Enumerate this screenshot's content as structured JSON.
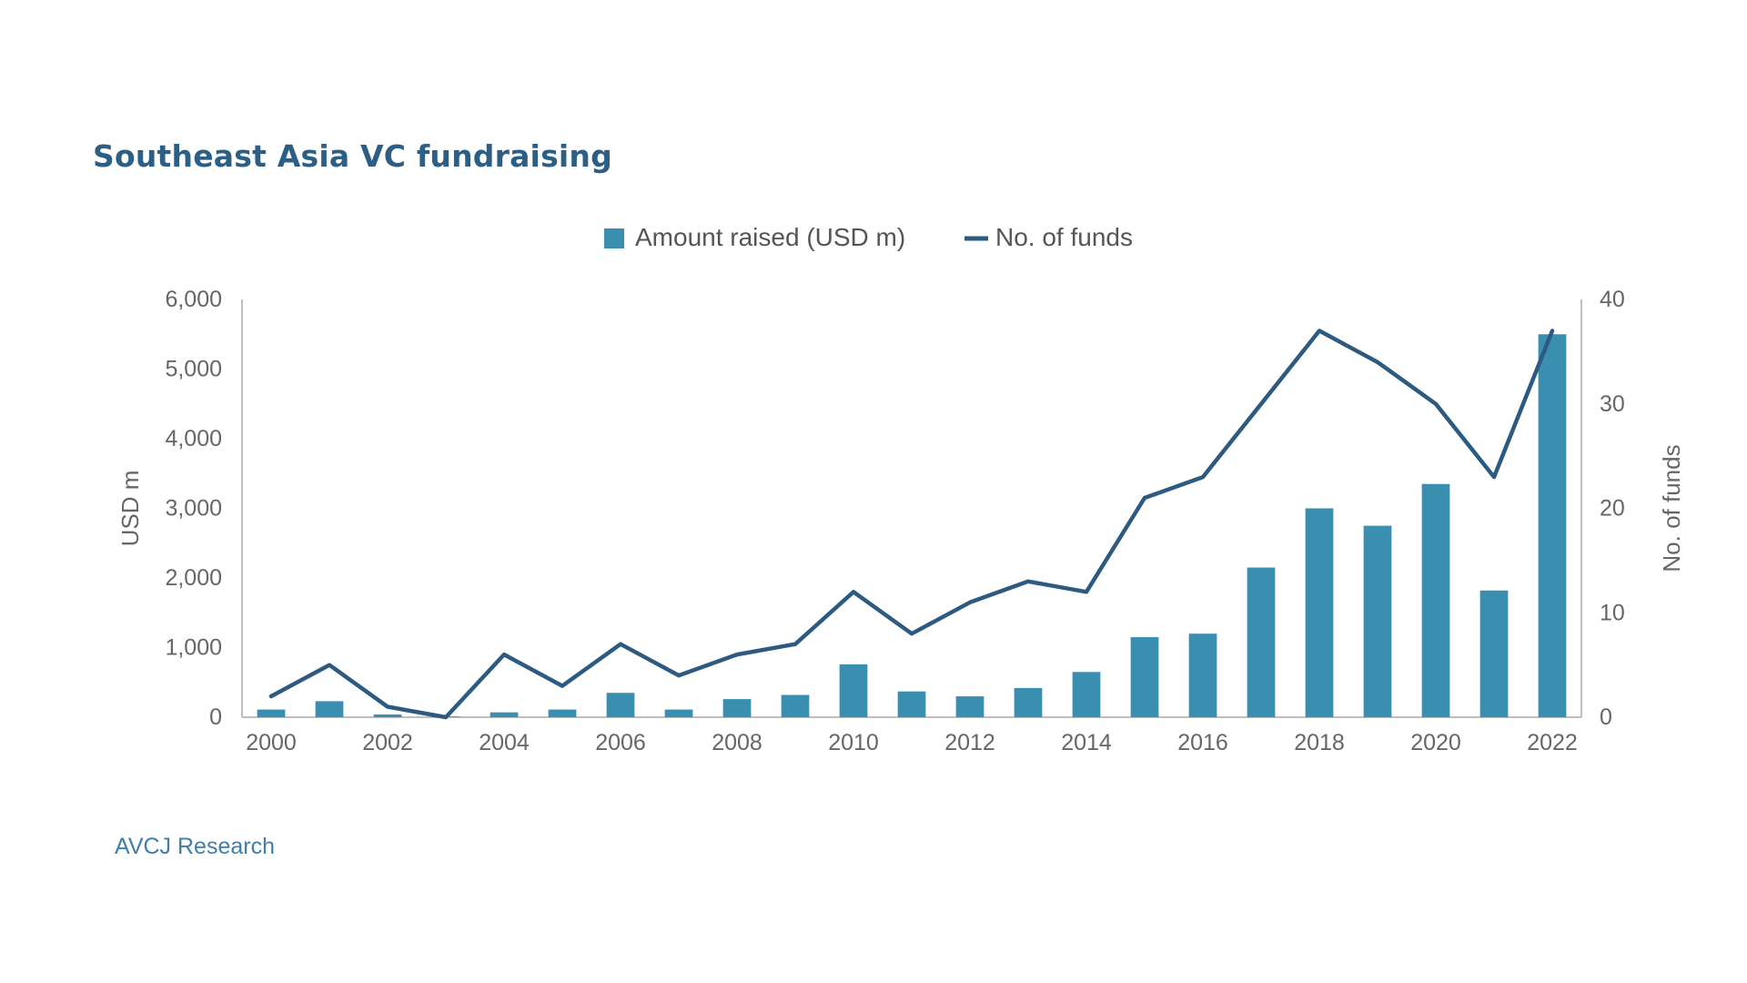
{
  "chart_data": {
    "type": "bar",
    "title": "Southeast Asia VC fundraising",
    "source": "AVCJ Research",
    "categories": [
      "2000",
      "2001",
      "2002",
      "2003",
      "2004",
      "2005",
      "2006",
      "2007",
      "2008",
      "2009",
      "2010",
      "2011",
      "2012",
      "2013",
      "2014",
      "2015",
      "2016",
      "2017",
      "2018",
      "2019",
      "2020",
      "2021",
      "2022"
    ],
    "x_tick_labels": [
      "2000",
      "2002",
      "2004",
      "2006",
      "2008",
      "2010",
      "2012",
      "2014",
      "2016",
      "2018",
      "2020",
      "2022"
    ],
    "series": [
      {
        "name": "Amount raised (USD m)",
        "type": "bar",
        "axis": "left",
        "color": "#3a8fb0",
        "values": [
          110,
          230,
          40,
          10,
          70,
          110,
          350,
          110,
          260,
          320,
          760,
          370,
          300,
          420,
          650,
          1150,
          1200,
          2150,
          3000,
          2750,
          3350,
          1820,
          5500
        ]
      },
      {
        "name": "No. of funds",
        "type": "line",
        "axis": "right",
        "color": "#2c5a80",
        "values": [
          2,
          5,
          1,
          0,
          6,
          3,
          7,
          4,
          6,
          7,
          12,
          8,
          11,
          13,
          12,
          21,
          23,
          30,
          37,
          34,
          30,
          23,
          37
        ]
      }
    ],
    "ylabel": "USD m",
    "ylim": [
      0,
      6000
    ],
    "y_ticks": [
      0,
      1000,
      2000,
      3000,
      4000,
      5000,
      6000
    ],
    "y_tick_labels": [
      "0",
      "1,000",
      "2,000",
      "3,000",
      "4,000",
      "5,000",
      "6,000"
    ],
    "y2label": "No. of funds",
    "y2lim": [
      0,
      40
    ],
    "y2_ticks": [
      0,
      10,
      20,
      30,
      40
    ],
    "y2_tick_labels": [
      "0",
      "10",
      "20",
      "30",
      "40"
    ],
    "grid": false,
    "legend": "top-center"
  }
}
